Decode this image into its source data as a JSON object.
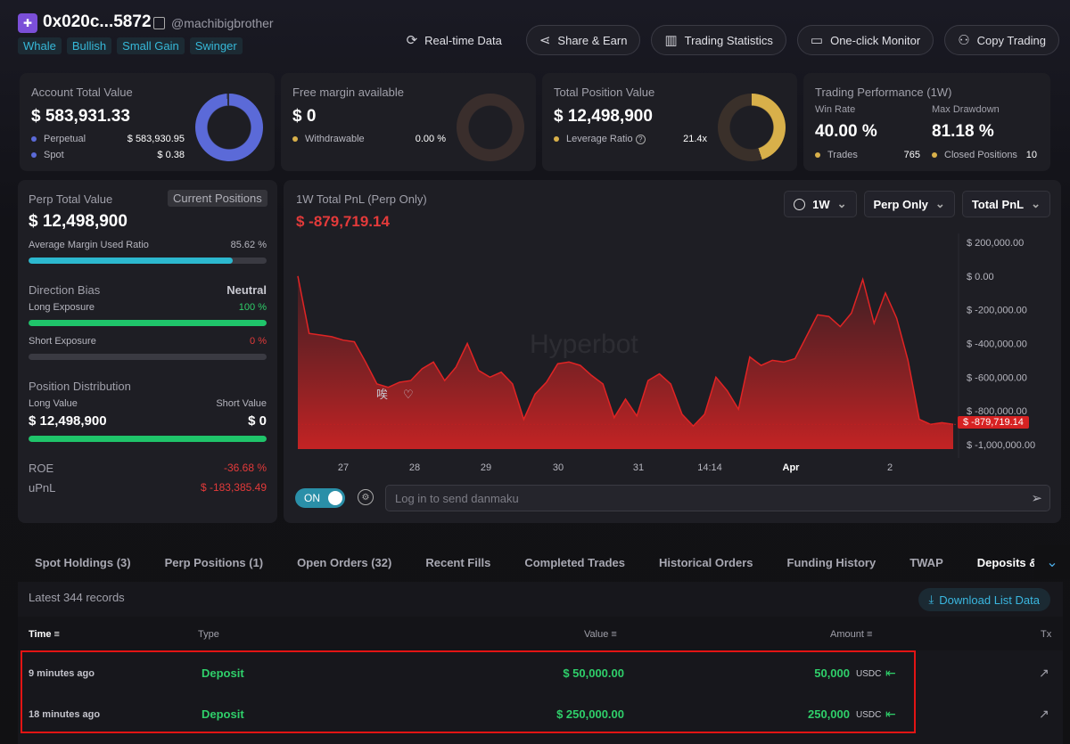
{
  "header": {
    "address": "0x020c...5872",
    "handle": "@machibigbrother",
    "tags": [
      "Whale",
      "Bullish",
      "Small Gain",
      "Swinger"
    ],
    "buttons": [
      {
        "label": "Real-time Data",
        "icon": "refresh-icon"
      },
      {
        "label": "Share & Earn",
        "icon": "share-icon"
      },
      {
        "label": "Trading Statistics",
        "icon": "bar-chart-icon"
      },
      {
        "label": "One-click Monitor",
        "icon": "monitor-icon"
      },
      {
        "label": "Copy Trading",
        "icon": "copy-trading-icon"
      }
    ]
  },
  "cards": {
    "account": {
      "title": "Account Total Value",
      "value": "$ 583,931.33",
      "rows": [
        {
          "label": "Perpetual",
          "value": "$ 583,930.95",
          "color": "#5b6ad8"
        },
        {
          "label": "Spot",
          "value": "$ 0.38",
          "color": "#5b6ad8"
        }
      ],
      "donut_color": "#5b6ad8",
      "perp_share": 0.99
    },
    "margin": {
      "title": "Free margin available",
      "value": "$ 0",
      "row_label": "Withdrawable",
      "row_value": "0.00 %",
      "dot_color": "#d8b04a"
    },
    "position": {
      "title": "Total Position Value",
      "value": "$ 12,498,900",
      "row_label": "Leverage Ratio",
      "row_value": "21.4x",
      "dot_color": "#d8b04a",
      "donut_color": "#d8b04a",
      "fill_share": 0.45
    },
    "performance": {
      "title": "Trading Performance (1W)",
      "winrate_label": "Win Rate",
      "winrate": "40.00 %",
      "drawdown_label": "Max Drawdown",
      "drawdown": "81.18 %",
      "trades_label": "Trades",
      "trades": "765",
      "closed_label": "Closed Positions",
      "closed": "10"
    }
  },
  "perp_panel": {
    "title": "Perp Total Value",
    "badge": "Current Positions",
    "value": "$ 12,498,900",
    "margin_label": "Average Margin Used Ratio",
    "margin_value": "85.62 %",
    "margin_ratio": 0.8562,
    "direction_label": "Direction Bias",
    "direction_value": "Neutral",
    "long_label": "Long Exposure",
    "long_value": "100 %",
    "long_ratio": 1.0,
    "short_label": "Short Exposure",
    "short_value": "0 %",
    "short_ratio": 0,
    "dist_label": "Position Distribution",
    "long_value_label": "Long Value",
    "short_value_label": "Short Value",
    "long_amount": "$ 12,498,900",
    "short_amount": "$ 0",
    "roe_label": "ROE",
    "roe_value": "-36.68 %",
    "upnl_label": "uPnL",
    "upnl_value": "$ -183,385.49"
  },
  "chart_panel": {
    "title": "1W Total PnL (Perp Only)",
    "value": "$ -879,719.14",
    "dropdowns": [
      "1W",
      "Perp Only",
      "Total PnL"
    ],
    "watermark": "Hyperbot",
    "danmaku_toggle": "ON",
    "danmaku_placeholder": "Log in to send danmaku",
    "float_glyph": "唉",
    "current_label": "$ -879,719.14"
  },
  "chart_data": {
    "type": "area",
    "title": "1W Total PnL (Perp Only)",
    "ylim": [
      -1000000,
      200000
    ],
    "yticks": [
      "$ 200,000.00",
      "$ 0.00",
      "$ -200,000.00",
      "$ -400,000.00",
      "$ -600,000.00",
      "$ -800,000.00",
      "$ -1,000,000.00"
    ],
    "xticks": [
      "27",
      "28",
      "29",
      "30",
      "31",
      "14:14",
      "Apr",
      "2"
    ],
    "last_value": -879719.14,
    "color": "#e02424",
    "values": [
      0,
      -340000,
      -350000,
      -360000,
      -380000,
      -390000,
      -510000,
      -640000,
      -660000,
      -630000,
      -620000,
      -550000,
      -510000,
      -620000,
      -540000,
      -400000,
      -560000,
      -600000,
      -570000,
      -640000,
      -850000,
      -700000,
      -630000,
      -520000,
      -510000,
      -530000,
      -590000,
      -640000,
      -840000,
      -730000,
      -830000,
      -620000,
      -580000,
      -640000,
      -820000,
      -890000,
      -820000,
      -600000,
      -680000,
      -790000,
      -480000,
      -530000,
      -500000,
      -510000,
      -490000,
      -360000,
      -230000,
      -240000,
      -300000,
      -220000,
      -20000,
      -280000,
      -100000,
      -250000,
      -500000,
      -850000,
      -880000,
      -870000,
      -879719
    ]
  },
  "tabs": [
    "Spot Holdings (3)",
    "Perp Positions (1)",
    "Open Orders (32)",
    "Recent Fills",
    "Completed Trades",
    "Historical Orders",
    "Funding History",
    "TWAP",
    "Deposits & Withdra"
  ],
  "table": {
    "records": "Latest 344 records",
    "download": "Download List Data",
    "headers": {
      "time": "Time",
      "type": "Type",
      "value": "Value",
      "amount": "Amount",
      "tx": "Tx"
    },
    "rows": [
      {
        "time": "9 minutes ago",
        "type": "Deposit",
        "value": "$ 50,000.00",
        "amount": "50,000",
        "unit": "USDC"
      },
      {
        "time": "18 minutes ago",
        "type": "Deposit",
        "value": "$ 250,000.00",
        "amount": "250,000",
        "unit": "USDC"
      }
    ]
  }
}
